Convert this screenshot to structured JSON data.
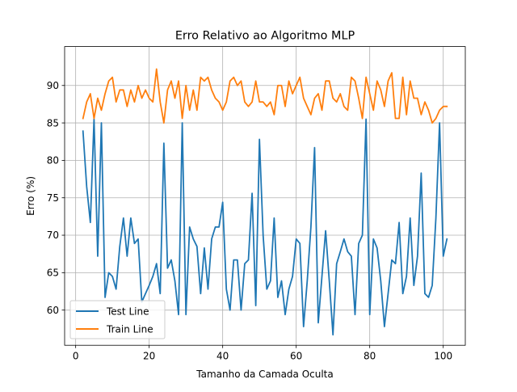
{
  "chart_data": {
    "type": "line",
    "title": "Erro Relativo ao Algoritmo MLP",
    "xlabel": "Tamanho da Camada Oculta",
    "ylabel": "Erro (%)",
    "xlim": [
      -3.0,
      106.0
    ],
    "ylim": [
      55.3,
      95.2
    ],
    "xticks": [
      0,
      20,
      40,
      60,
      80,
      100
    ],
    "yticks": [
      60,
      65,
      70,
      75,
      80,
      85,
      90
    ],
    "grid": true,
    "legend_position": "lower-left",
    "series": [
      {
        "name": "Test Line",
        "color": "#1f77b4",
        "x": [
          2,
          3,
          4,
          5,
          6,
          7,
          8,
          9,
          10,
          11,
          12,
          13,
          14,
          15,
          16,
          17,
          18,
          19,
          20,
          21,
          22,
          23,
          24,
          25,
          26,
          27,
          28,
          29,
          30,
          31,
          32,
          33,
          34,
          35,
          36,
          37,
          38,
          39,
          40,
          41,
          42,
          43,
          44,
          45,
          46,
          47,
          48,
          49,
          50,
          51,
          52,
          53,
          54,
          55,
          56,
          57,
          58,
          59,
          60,
          61,
          62,
          63,
          64,
          65,
          66,
          67,
          68,
          69,
          70,
          71,
          72,
          73,
          74,
          75,
          76,
          77,
          78,
          79,
          80,
          81,
          82,
          83,
          84,
          85,
          86,
          87,
          88,
          89,
          90,
          91,
          92,
          93,
          94,
          95,
          96,
          97,
          98,
          99,
          100,
          101
        ],
        "y": [
          83.9,
          76.5,
          71.7,
          85.5,
          67.2,
          85.0,
          61.7,
          65.0,
          64.5,
          62.8,
          68.5,
          72.3,
          67.2,
          72.3,
          68.9,
          69.5,
          61.1,
          62.2,
          63.3,
          64.5,
          66.2,
          62.2,
          82.3,
          65.6,
          66.7,
          63.9,
          59.4,
          85.0,
          59.4,
          71.1,
          69.5,
          68.5,
          62.2,
          68.3,
          62.8,
          69.5,
          71.1,
          71.1,
          74.4,
          62.8,
          60.0,
          66.7,
          66.7,
          60.0,
          66.2,
          66.7,
          75.6,
          60.6,
          82.8,
          70.0,
          62.8,
          63.9,
          72.3,
          61.7,
          63.9,
          59.4,
          62.8,
          64.5,
          69.5,
          68.9,
          57.8,
          63.9,
          71.1,
          81.7,
          58.3,
          64.5,
          70.6,
          63.9,
          56.7,
          66.2,
          67.8,
          69.5,
          67.8,
          67.2,
          59.4,
          68.9,
          70.0,
          85.5,
          59.4,
          69.5,
          68.3,
          63.9,
          57.8,
          62.2,
          66.7,
          66.2,
          71.7,
          62.2,
          64.5,
          72.3,
          63.3,
          67.2,
          78.3,
          62.2,
          61.7,
          63.3,
          72.3,
          85.0,
          67.2,
          69.5
        ]
      },
      {
        "name": "Train Line",
        "color": "#ff7f0e",
        "x": [
          2,
          3,
          4,
          5,
          6,
          7,
          8,
          9,
          10,
          11,
          12,
          13,
          14,
          15,
          16,
          17,
          18,
          19,
          20,
          21,
          22,
          23,
          24,
          25,
          26,
          27,
          28,
          29,
          30,
          31,
          32,
          33,
          34,
          35,
          36,
          37,
          38,
          39,
          40,
          41,
          42,
          43,
          44,
          45,
          46,
          47,
          48,
          49,
          50,
          51,
          52,
          53,
          54,
          55,
          56,
          57,
          58,
          59,
          60,
          61,
          62,
          63,
          64,
          65,
          66,
          67,
          68,
          69,
          70,
          71,
          72,
          73,
          74,
          75,
          76,
          77,
          78,
          79,
          80,
          81,
          82,
          83,
          84,
          85,
          86,
          87,
          88,
          89,
          90,
          91,
          92,
          93,
          94,
          95,
          96,
          97,
          98,
          99,
          100,
          101
        ],
        "y": [
          85.6,
          87.8,
          88.9,
          85.6,
          88.3,
          86.7,
          88.9,
          90.6,
          91.1,
          87.8,
          89.4,
          89.4,
          87.2,
          89.4,
          87.8,
          90.0,
          88.3,
          89.4,
          88.3,
          87.8,
          92.2,
          87.8,
          85.0,
          89.4,
          90.6,
          88.3,
          90.6,
          85.6,
          90.0,
          86.7,
          89.4,
          86.7,
          91.1,
          90.6,
          91.1,
          89.4,
          88.3,
          87.8,
          86.7,
          87.8,
          90.6,
          91.1,
          90.0,
          90.6,
          87.8,
          87.2,
          87.8,
          90.6,
          87.8,
          87.8,
          87.2,
          87.8,
          86.1,
          90.0,
          90.0,
          87.2,
          90.6,
          88.9,
          90.0,
          91.1,
          88.3,
          87.2,
          86.1,
          88.3,
          88.9,
          86.7,
          90.6,
          90.6,
          88.3,
          87.8,
          88.9,
          87.2,
          86.7,
          91.1,
          90.6,
          88.3,
          85.6,
          91.1,
          88.9,
          86.7,
          90.6,
          89.4,
          87.2,
          90.6,
          91.7,
          85.6,
          85.6,
          91.1,
          86.1,
          90.6,
          88.3,
          88.3,
          86.1,
          87.8,
          86.7,
          85.0,
          85.6,
          86.7,
          87.2,
          87.2
        ]
      }
    ]
  }
}
